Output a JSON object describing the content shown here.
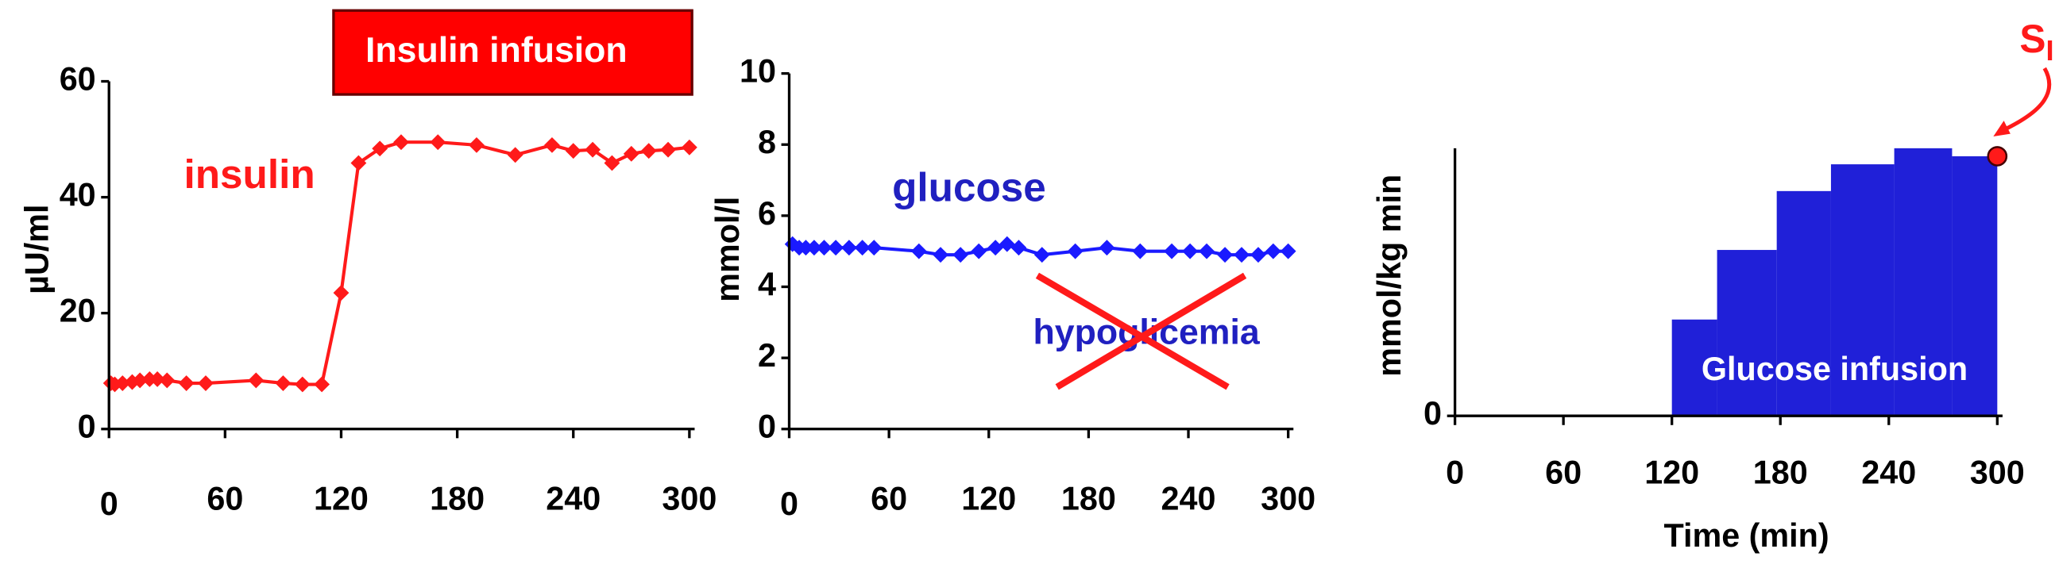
{
  "chart_data": [
    {
      "type": "line",
      "annotation": "Insulin infusion",
      "y_label": "µU/ml",
      "x": [
        1,
        3,
        7,
        12,
        16,
        21,
        25,
        30,
        40,
        50,
        76,
        90,
        100,
        110,
        120,
        129,
        140,
        151,
        170,
        190,
        210,
        229,
        240,
        250,
        260,
        270,
        279,
        289,
        300
      ],
      "series": [
        {
          "name": "insulin",
          "color": "#ff1a1a",
          "values": [
            7.9,
            7.7,
            7.9,
            8.1,
            8.4,
            8.6,
            8.6,
            8.4,
            7.9,
            7.9,
            8.4,
            7.9,
            7.7,
            7.7,
            23.5,
            45.9,
            48.4,
            49.5,
            49.5,
            49,
            47.3,
            49,
            48,
            48.2,
            45.9,
            47.5,
            48,
            48.2,
            48.6
          ]
        }
      ],
      "xlim": [
        0,
        300
      ],
      "xticks": [
        0,
        60,
        120,
        180,
        240,
        300
      ],
      "ylim": [
        0,
        60
      ],
      "yticks": [
        0,
        20,
        40,
        60
      ]
    },
    {
      "type": "line",
      "annotation": "hypoglicemia",
      "y_label": "mmol/l",
      "x": [
        2,
        6,
        10,
        15,
        21,
        28,
        36,
        44,
        51,
        78,
        91,
        103,
        114,
        124,
        131,
        138,
        152,
        172,
        191,
        211,
        230,
        241,
        251,
        262,
        272,
        282,
        291,
        300
      ],
      "series": [
        {
          "name": "glucose",
          "color": "#1a1aff",
          "values": [
            5.2,
            5.1,
            5.1,
            5.1,
            5.1,
            5.1,
            5.1,
            5.1,
            5.1,
            5.0,
            4.9,
            4.9,
            5.0,
            5.1,
            5.2,
            5.1,
            4.9,
            5.0,
            5.1,
            5.0,
            5.0,
            5.0,
            5.0,
            4.9,
            4.9,
            4.9,
            5.0,
            5.0
          ]
        }
      ],
      "xlim": [
        0,
        300
      ],
      "xticks": [
        0,
        60,
        120,
        180,
        240,
        300
      ],
      "ylim": [
        0,
        10
      ],
      "yticks": [
        0,
        2,
        4,
        6,
        8,
        10
      ]
    },
    {
      "type": "histogram",
      "annotation": {
        "text": "S",
        "subscript": "I",
        "x": 300,
        "y": 97,
        "color": "#ff1a1a"
      },
      "x_label": "Time (min)",
      "y_label": "mmol/kg min",
      "bins": [
        120,
        145,
        178,
        208,
        243,
        275,
        300
      ],
      "series": [
        {
          "name": "Glucose infusion",
          "color": "#2020d8",
          "values": [
            36,
            62,
            84,
            94,
            100,
            97
          ]
        }
      ],
      "xlim": [
        0,
        300
      ],
      "xticks": [
        0,
        60,
        120,
        180,
        240,
        300
      ],
      "ylim": [
        0,
        100
      ],
      "yticks": [
        0
      ]
    }
  ]
}
